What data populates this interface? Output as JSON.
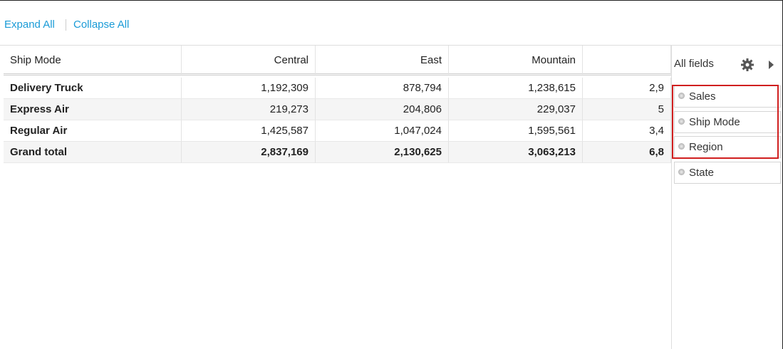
{
  "toolbar": {
    "links": [
      "Expand All",
      "Collapse All"
    ]
  },
  "table": {
    "columns": [
      "Ship Mode",
      "Central",
      "East",
      "Mountain"
    ],
    "rows": [
      [
        "Delivery Truck",
        "1,192,309",
        "878,794",
        "1,238,615",
        "2,9"
      ],
      [
        "Express Air",
        "219,273",
        "204,806",
        "229,037",
        "5"
      ],
      [
        "Regular Air",
        "1,425,587",
        "1,047,024",
        "1,595,561",
        "3,4"
      ],
      [
        "Grand total",
        "2,837,169",
        "2,130,625",
        "3,063,213",
        "6,8"
      ]
    ]
  },
  "panel": {
    "title": "All fields",
    "fields": [
      "Sales",
      "Ship Mode",
      "Region",
      "State"
    ]
  }
}
